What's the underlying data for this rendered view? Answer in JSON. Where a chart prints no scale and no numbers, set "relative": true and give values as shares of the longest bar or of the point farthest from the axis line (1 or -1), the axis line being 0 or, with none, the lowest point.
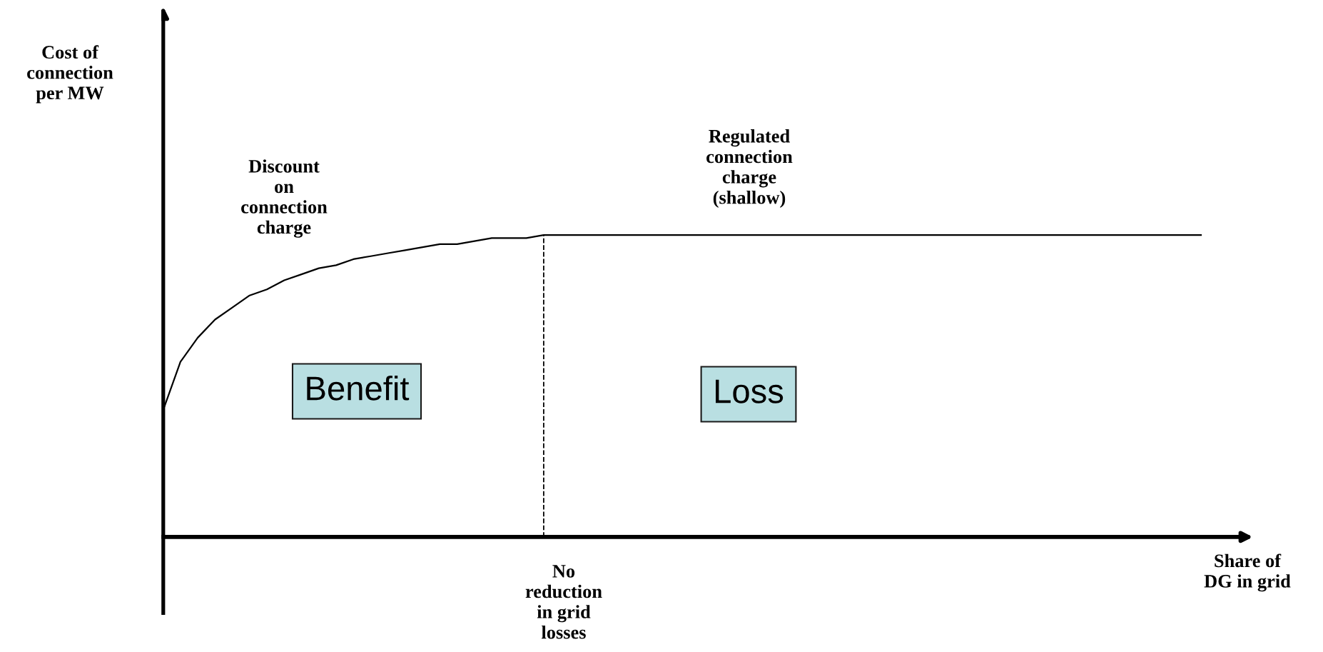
{
  "chart_data": {
    "type": "line",
    "relative": true,
    "color": "#000000",
    "categories": [
      null,
      null,
      null,
      null,
      null,
      null,
      null,
      null,
      null,
      null,
      null,
      null,
      null,
      null,
      null,
      null,
      null,
      null,
      null,
      null,
      null,
      null,
      null,
      null,
      null,
      null,
      null,
      null,
      null,
      null,
      null,
      null,
      null,
      null,
      null,
      null,
      null,
      null,
      null,
      null,
      null,
      null,
      null,
      null,
      null,
      null,
      null,
      null,
      null,
      null,
      null,
      null,
      null,
      null,
      null,
      null,
      null,
      null,
      null,
      null,
      null
    ],
    "values": [
      0.42,
      0.58,
      0.66,
      0.72,
      0.76,
      0.8,
      0.82,
      0.85,
      0.87,
      0.89,
      0.9,
      0.92,
      0.93,
      0.94,
      0.95,
      0.96,
      0.97,
      0.97,
      0.98,
      0.99,
      0.99,
      0.99,
      1,
      1,
      1,
      1,
      1,
      1,
      1,
      1,
      1,
      1,
      1,
      1,
      1,
      1,
      1,
      1,
      1,
      1,
      1,
      1,
      1,
      1,
      1,
      1,
      1,
      1,
      1,
      1,
      1,
      1,
      1,
      1,
      1,
      1,
      1,
      1,
      1,
      1,
      1
    ],
    "xlabel": "Share of\nDG in grid",
    "annotations": [
      "Cost of\nconnection\nper MW",
      "Discount\non\nconnection\ncharge",
      "Regulated\nconnection\ncharge\n(shallow)",
      "Benefit",
      "Loss",
      "No\nreduction\nin grid\nlosses"
    ],
    "marker": "none",
    "line_style": "solid"
  }
}
